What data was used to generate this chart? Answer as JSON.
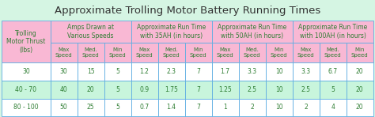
{
  "title": "Approximate Trolling Motor Battery Running Times",
  "title_fontsize": 9.5,
  "bg_color": "#d5f5e3",
  "header_pink": "#f9b8d4",
  "header_green": "#c8f5dc",
  "data_white": "#ffffff",
  "data_green": "#c8f5dc",
  "border_color": "#5dade2",
  "text_color": "#2e7d32",
  "title_color": "#333333",
  "subheaders": [
    "Max\nSpeed",
    "Med.\nSpeed",
    "Min\nSpeed"
  ],
  "group_labels": [
    "Amps Drawn at\nVarious Speeds",
    "Approximate Run Time\nwith 35AH (in hours)",
    "Approximate Run Time\nwith 50AH (in hours)",
    "Approximate Run Time\nwith 100AH (in hours)"
  ],
  "thrust_label": "Trolling\nMotor Thrust\n(lbs)",
  "rows": [
    {
      "thrust": "30",
      "amps": [
        "30",
        "15",
        "5"
      ],
      "r35": [
        "1.2",
        "2.3",
        "7"
      ],
      "r50": [
        "1.7",
        "3.3",
        "10"
      ],
      "r100": [
        "3.3",
        "6.7",
        "20"
      ]
    },
    {
      "thrust": "40 - 70",
      "amps": [
        "40",
        "20",
        "5"
      ],
      "r35": [
        "0.9",
        "1.75",
        "7"
      ],
      "r50": [
        "1.25",
        "2.5",
        "10"
      ],
      "r100": [
        "2.5",
        "5",
        "20"
      ]
    },
    {
      "thrust": "80 - 100",
      "amps": [
        "50",
        "25",
        "5"
      ],
      "r35": [
        "0.7",
        "1.4",
        "7"
      ],
      "r50": [
        "1",
        "2",
        "10"
      ],
      "r100": [
        "2",
        "4",
        "20"
      ]
    }
  ],
  "col_weights": [
    1.35,
    0.75,
    0.75,
    0.75,
    0.75,
    0.75,
    0.75,
    0.75,
    0.75,
    0.75,
    0.75,
    0.75,
    0.75
  ],
  "figsize": [
    4.74,
    1.48
  ],
  "dpi": 100
}
